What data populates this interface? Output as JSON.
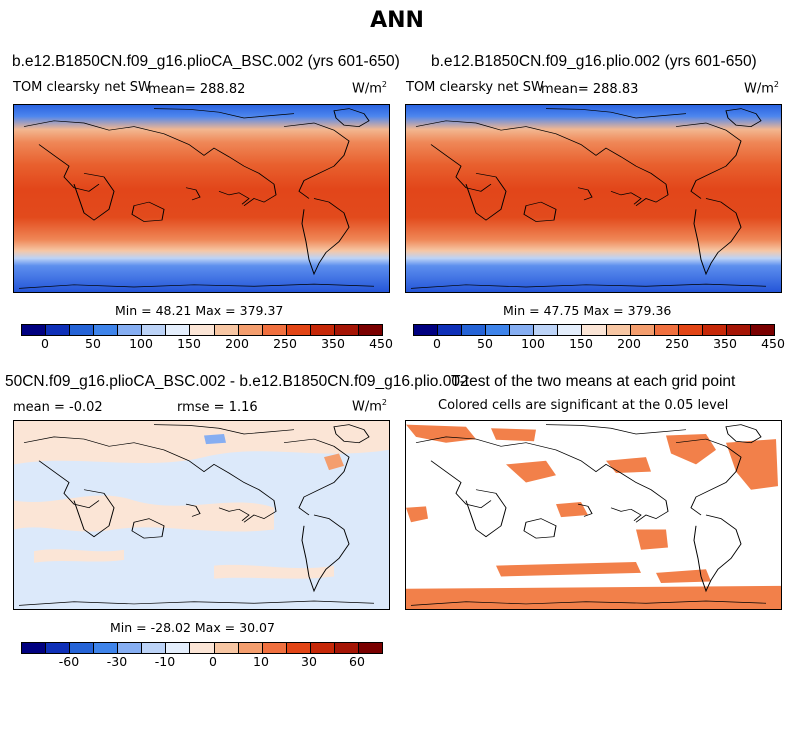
{
  "page_title": "ANN",
  "colors": {
    "abs_scale": [
      "#000080",
      "#0f30b8",
      "#2563d6",
      "#3f84ea",
      "#86aef2",
      "#bcd3f7",
      "#e4eefc",
      "#fbe5d6",
      "#f7c6a3",
      "#f49e6e",
      "#f0703f",
      "#e24516",
      "#c62808",
      "#a51505",
      "#7a0000"
    ],
    "diff_scale": [
      "#000080",
      "#0f30b8",
      "#2563d6",
      "#3f84ea",
      "#86aef2",
      "#bcd3f7",
      "#e4eefc",
      "#fbe5d6",
      "#f7c6a3",
      "#f49e6e",
      "#f0703f",
      "#e24516",
      "#c62808",
      "#a51505",
      "#7a0000"
    ],
    "significant_cells": "#f2804a",
    "map_nosig": "#ffffff"
  },
  "panels": {
    "p1": {
      "title": "b.e12.B1850CN.f09_g16.plioCA_BSC.002 (yrs 601-650)",
      "variable": "TOM clearsky net SW",
      "mean_text": "mean= 288.82",
      "units": "W/m",
      "units_sup": "2",
      "minmax": "Min =   48.21 Max = 379.37",
      "ticks": [
        "0",
        "50",
        "100",
        "150",
        "200",
        "250",
        "350",
        "450"
      ]
    },
    "p2": {
      "title": "b.e12.B1850CN.f09_g16.plio.002 (yrs 601-650)",
      "variable": "TOM clearsky net SW",
      "mean_text": "mean= 288.83",
      "units": "W/m",
      "units_sup": "2",
      "minmax": "Min =   47.75 Max = 379.36",
      "ticks": [
        "0",
        "50",
        "100",
        "150",
        "200",
        "250",
        "350",
        "450"
      ]
    },
    "p3": {
      "title": "50CN.f09_g16.plioCA_BSC.002 - b.e12.B1850CN.f09_g16.plio.002",
      "mean_text": "mean =  -0.02",
      "rmse_text": "rmse =    1.16",
      "units": "W/m",
      "units_sup": "2",
      "minmax": "Min = -28.02 Max =  30.07",
      "ticks": [
        "-60",
        "-30",
        "-10",
        "0",
        "10",
        "30",
        "60"
      ]
    },
    "p4": {
      "title": "T-test of the two means at each grid point",
      "subtitle": "Colored cells are significant at the 0.05 level"
    }
  },
  "chart_data": [
    {
      "type": "heatmap",
      "title": "b.e12.B1850CN.f09_g16.plioCA_BSC.002 (yrs 601-650)",
      "variable": "TOM clearsky net SW",
      "units": "W/m^2",
      "mean": 288.82,
      "min": 48.21,
      "max": 379.37,
      "colorbar_ticks": [
        0,
        50,
        100,
        150,
        200,
        250,
        350,
        450
      ]
    },
    {
      "type": "heatmap",
      "title": "b.e12.B1850CN.f09_g16.plio.002 (yrs 601-650)",
      "variable": "TOM clearsky net SW",
      "units": "W/m^2",
      "mean": 288.83,
      "min": 47.75,
      "max": 379.36,
      "colorbar_ticks": [
        0,
        50,
        100,
        150,
        200,
        250,
        350,
        450
      ]
    },
    {
      "type": "heatmap",
      "title": "50CN.f09_g16.plioCA_BSC.002 - b.e12.B1850CN.f09_g16.plio.002",
      "units": "W/m^2",
      "mean": -0.02,
      "rmse": 1.16,
      "min": -28.02,
      "max": 30.07,
      "colorbar_ticks": [
        -60,
        -30,
        -10,
        0,
        10,
        30,
        60
      ]
    },
    {
      "type": "heatmap",
      "title": "T-test of the two means at each grid point",
      "subtitle": "Colored cells are significant at the 0.05 level",
      "significance_level": 0.05
    }
  ]
}
